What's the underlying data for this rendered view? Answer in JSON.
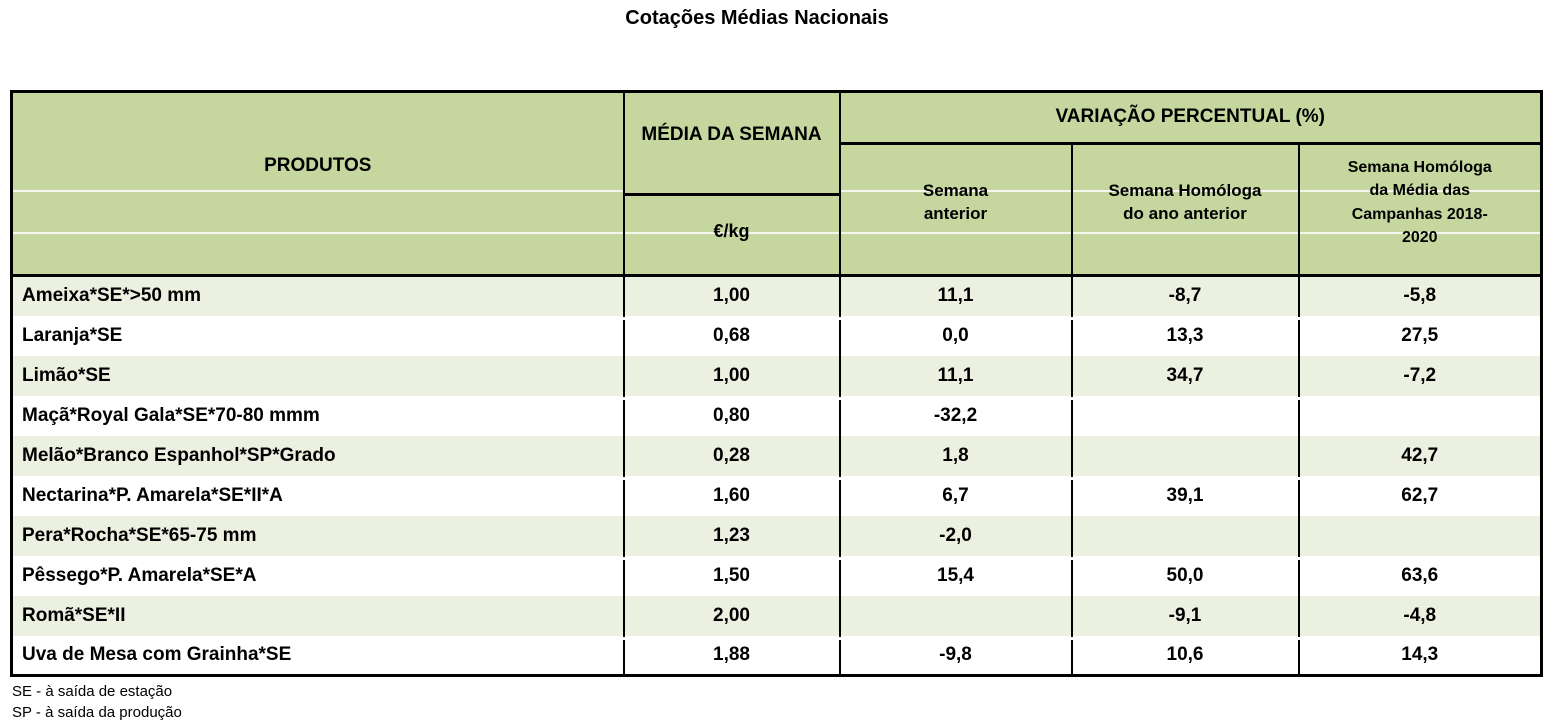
{
  "title": "Cotações Médias Nacionais",
  "table": {
    "headers": {
      "produtos": "PRODUTOS",
      "media_semana": "MÉDIA DA SEMANA",
      "unit": "€/kg",
      "variacao": "VARIAÇÃO PERCENTUAL (%)",
      "semana_anterior": "Semana\nanterior",
      "semana_homologa_ano": "Semana Homóloga\ndo ano anterior",
      "semana_homologa_campanhas": "Semana Homóloga\nda Média das\nCampanhas 2018-\n2020"
    },
    "rows": [
      {
        "produto": "Ameixa*SE*>50 mm",
        "media": "1,00",
        "semana_anterior": "11,1",
        "homologa_ano_anterior": "-8,7",
        "homologa_campanhas": "-5,8"
      },
      {
        "produto": "Laranja*SE",
        "media": "0,68",
        "semana_anterior": "0,0",
        "homologa_ano_anterior": "13,3",
        "homologa_campanhas": "27,5"
      },
      {
        "produto": "Limão*SE",
        "media": "1,00",
        "semana_anterior": "11,1",
        "homologa_ano_anterior": "34,7",
        "homologa_campanhas": "-7,2"
      },
      {
        "produto": "Maçã*Royal Gala*SE*70-80 mmm",
        "media": "0,80",
        "semana_anterior": "-32,2",
        "homologa_ano_anterior": "",
        "homologa_campanhas": ""
      },
      {
        "produto": "Melão*Branco Espanhol*SP*Grado",
        "media": "0,28",
        "semana_anterior": "1,8",
        "homologa_ano_anterior": "",
        "homologa_campanhas": "42,7"
      },
      {
        "produto": "Nectarina*P. Amarela*SE*II*A",
        "media": "1,60",
        "semana_anterior": "6,7",
        "homologa_ano_anterior": "39,1",
        "homologa_campanhas": "62,7"
      },
      {
        "produto": "Pera*Rocha*SE*65-75 mm",
        "media": "1,23",
        "semana_anterior": "-2,0",
        "homologa_ano_anterior": "",
        "homologa_campanhas": ""
      },
      {
        "produto": "Pêssego*P. Amarela*SE*A",
        "media": "1,50",
        "semana_anterior": "15,4",
        "homologa_ano_anterior": "50,0",
        "homologa_campanhas": "63,6"
      },
      {
        "produto": "Romã*SE*II",
        "media": "2,00",
        "semana_anterior": "",
        "homologa_ano_anterior": "-9,1",
        "homologa_campanhas": "-4,8"
      },
      {
        "produto": "Uva de Mesa com Grainha*SE",
        "media": "1,88",
        "semana_anterior": "-9,8",
        "homologa_ano_anterior": "10,6",
        "homologa_campanhas": "14,3"
      }
    ]
  },
  "footnotes": [
    "SE - à saída de estação",
    "SP - à saída da produção"
  ],
  "colors": {
    "header_green": "#C5D79E",
    "row_shaded": "#ECF0E0",
    "border": "#000000"
  }
}
